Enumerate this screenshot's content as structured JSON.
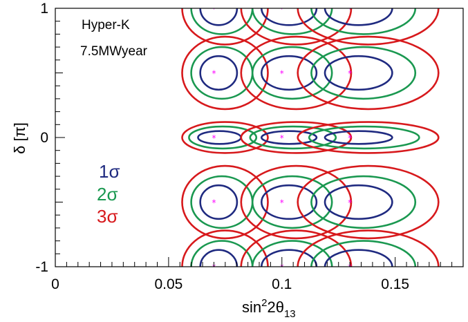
{
  "chart_data": {
    "type": "contour",
    "title": "",
    "xlabel": "sin²2θ₁₃",
    "ylabel": "δ [π]",
    "xlim": [
      0,
      0.18
    ],
    "ylim": [
      -1,
      1
    ],
    "grid": false,
    "x_ticks": [
      {
        "value": 0,
        "label": "0"
      },
      {
        "value": 0.05,
        "label": "0.05"
      },
      {
        "value": 0.1,
        "label": "0.1"
      },
      {
        "value": 0.15,
        "label": "0.15"
      }
    ],
    "y_ticks": [
      {
        "value": -1,
        "label": "-1"
      },
      {
        "value": 0,
        "label": "0"
      },
      {
        "value": 1,
        "label": "1"
      }
    ],
    "annotations": [
      "Hyper-K",
      "7.5MWyear"
    ],
    "legend": {
      "placement": "left",
      "entries": [
        {
          "label": "1σ",
          "color": "#1f2a80"
        },
        {
          "label": "2σ",
          "color": "#1a9850"
        },
        {
          "label": "3σ",
          "color": "#d7191c"
        }
      ]
    },
    "true_points": {
      "x": [
        0.07,
        0.1,
        0.13
      ],
      "delta": [
        -1,
        -0.5,
        0,
        0.5,
        1
      ],
      "marker_color": "#ff00ff"
    },
    "contour_half_widths": {
      "note_units": "data units (sin²2θ₁₃, δ[π])",
      "delta_0": {
        "x_0.07": {
          "1σ": [
            0.007,
            0.05
          ],
          "2σ": [
            0.011,
            0.085
          ],
          "3σ": [
            0.014,
            0.12
          ]
        },
        "x_0.1": {
          "1σ": [
            0.009,
            0.05
          ],
          "2σ": [
            0.014,
            0.085
          ],
          "3σ": [
            0.018,
            0.12
          ]
        },
        "x_0.13": {
          "1σ": [
            0.011,
            0.05
          ],
          "2σ": [
            0.018,
            0.085
          ],
          "3σ": [
            0.023,
            0.12
          ]
        }
      },
      "delta_±0.5": {
        "x_0.07": {
          "1σ": [
            0.006,
            0.13
          ],
          "2σ": [
            0.01,
            0.2
          ],
          "3σ": [
            0.014,
            0.28
          ]
        },
        "x_0.1": {
          "1σ": [
            0.009,
            0.13
          ],
          "2σ": [
            0.013,
            0.2
          ],
          "3σ": [
            0.018,
            0.28
          ]
        },
        "x_0.13": {
          "1σ": [
            0.011,
            0.13
          ],
          "2σ": [
            0.017,
            0.2
          ],
          "3σ": [
            0.023,
            0.28
          ]
        }
      }
    }
  }
}
